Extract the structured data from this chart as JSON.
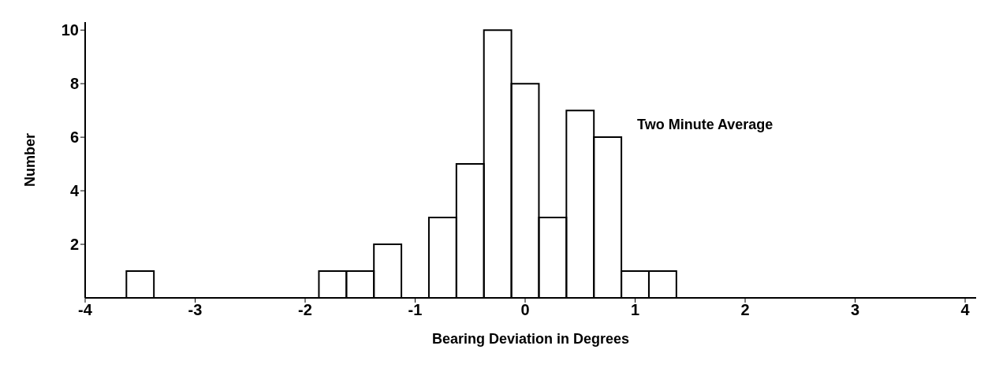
{
  "chart_data": {
    "type": "histogram",
    "bins": [
      -3.625,
      -3.375,
      -3.125,
      -2.875,
      -2.625,
      -2.375,
      -2.125,
      -1.875,
      -1.625,
      -1.375,
      -1.125,
      -0.875,
      -0.625,
      -0.375,
      -0.125,
      0.125,
      0.375,
      0.625,
      0.875,
      1.125,
      1.375
    ],
    "values": [
      1,
      0,
      0,
      0,
      0,
      0,
      0,
      1,
      1,
      2,
      0,
      3,
      5,
      10,
      8,
      3,
      7,
      6,
      1,
      1
    ],
    "color": "#000000",
    "xlabel": "Bearing Deviation in Degrees",
    "ylabel": "Number",
    "annotations": [
      "Two Minute Average"
    ],
    "xlim": [
      -4,
      4.1
    ],
    "xticks": [
      -4,
      -3,
      -2,
      -1,
      0,
      1,
      2,
      3,
      4
    ],
    "ylim": [
      0,
      10.3
    ],
    "yticks": [
      2,
      4,
      6,
      8,
      10
    ],
    "grid": false
  }
}
